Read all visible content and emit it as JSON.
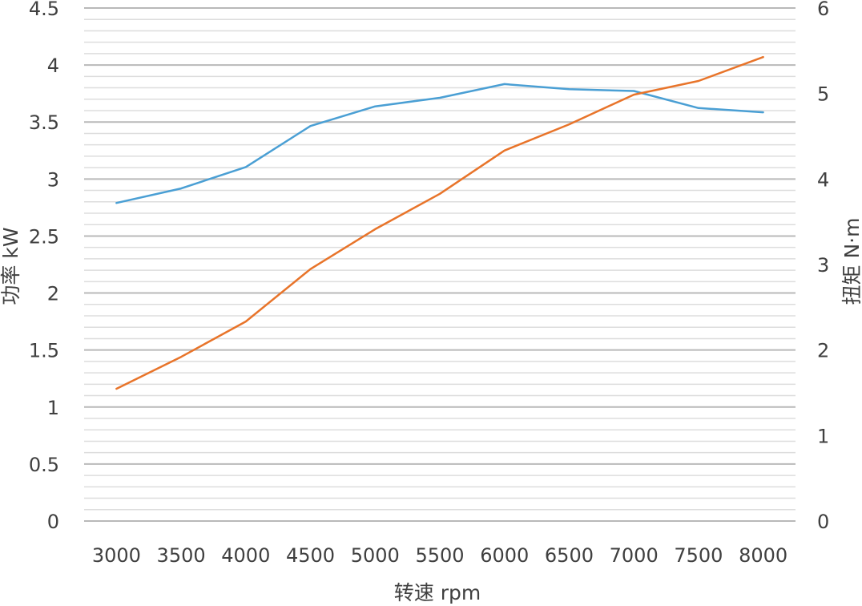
{
  "chart_data": {
    "type": "line",
    "x_label": "转速  rpm",
    "y_left_label": "功率 kW",
    "y_right_label": "扭矩 N·m",
    "categories": [
      "3000",
      "3500",
      "4000",
      "4500",
      "5000",
      "5500",
      "6000",
      "6500",
      "7000",
      "7500",
      "8000"
    ],
    "y_left_ticks": [
      "0",
      "0.5",
      "1",
      "1.5",
      "2",
      "2.5",
      "3",
      "3.5",
      "4",
      "4.5"
    ],
    "y_right_ticks": [
      "0",
      "1",
      "2",
      "3",
      "4",
      "5",
      "6"
    ],
    "y_left_range": [
      0,
      4.5
    ],
    "y_right_range": [
      0,
      6
    ],
    "grid": "horizontal major and minor gridlines",
    "series": [
      {
        "axis": "right",
        "color": "#4a9fd4",
        "values": [
          3.72,
          3.89,
          4.14,
          4.62,
          4.85,
          4.95,
          5.11,
          5.05,
          5.03,
          4.83,
          4.78
        ]
      },
      {
        "axis": "left",
        "color": "#e8742a",
        "values": [
          1.16,
          1.44,
          1.75,
          2.21,
          2.56,
          2.87,
          3.25,
          3.48,
          3.74,
          3.86,
          4.07
        ]
      }
    ]
  }
}
